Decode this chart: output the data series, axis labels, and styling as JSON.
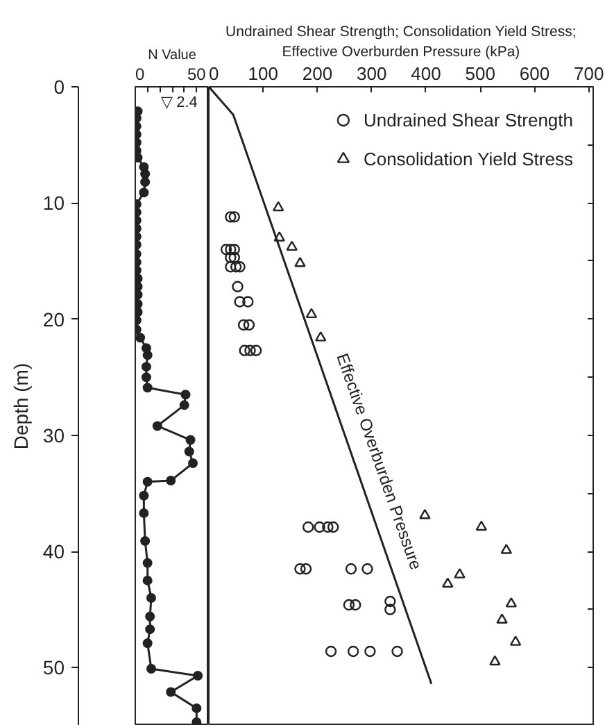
{
  "chart_data": [
    {
      "type": "line",
      "xlabel": "N Value",
      "ylabel": "Depth (m)",
      "xlim": [
        0,
        60
      ],
      "ylim": [
        55,
        0
      ],
      "xticks": [
        0,
        {
          "value": 10,
          "label": null
        },
        {
          "value": 20,
          "label": null
        },
        {
          "value": 30,
          "label": null
        },
        {
          "value": 40,
          "label": null
        },
        50
      ],
      "yticks": [
        0,
        10,
        20,
        30,
        40,
        50
      ],
      "marker": "circle",
      "grid": false,
      "annotations": [
        "▽ 2.4"
      ],
      "series": [
        {
          "color": "#222222",
          "x": [
            2,
            1,
            1,
            1,
            1,
            1,
            2,
            7,
            8,
            8,
            7,
            1,
            1,
            1,
            1,
            1,
            1,
            1,
            1,
            1,
            2,
            2,
            2,
            2,
            2,
            1,
            1,
            4,
            9,
            10,
            9,
            9,
            10,
            41,
            40,
            18,
            45,
            44,
            47,
            29,
            10,
            7,
            7,
            8,
            10,
            10,
            13,
            12,
            12,
            10,
            13,
            51,
            29,
            50,
            50
          ],
          "values": [
            2.1,
            2.7,
            3.4,
            4.1,
            4.8,
            5.5,
            6.1,
            6.9,
            7.5,
            8.2,
            9.1,
            10.1,
            10.8,
            11.5,
            12.2,
            12.9,
            13.6,
            14.4,
            15.1,
            15.8,
            16.5,
            17.2,
            17.9,
            18.7,
            19.4,
            20.1,
            20.9,
            21.6,
            22.5,
            23.1,
            24.1,
            25.0,
            25.9,
            26.5,
            27.4,
            29.2,
            30.4,
            31.4,
            32.4,
            33.9,
            34.0,
            35.2,
            36.7,
            39.1,
            41.0,
            42.5,
            44.0,
            45.6,
            46.7,
            47.9,
            50.1,
            50.7,
            52.1,
            53.5,
            54.7
          ]
        }
      ]
    },
    {
      "type": "scatter",
      "xlabel": "Undrained Shear Strength; Consolidation Yield Stress;\nEffective Overburden Pressure (kPa)",
      "xlim": [
        0,
        708
      ],
      "ylim": [
        55,
        0
      ],
      "xticks": [
        0,
        100,
        200,
        300,
        400,
        500,
        600,
        700
      ],
      "yticks": [
        {
          "value": 5,
          "label": null
        },
        {
          "value": 10,
          "label": null
        },
        {
          "value": 15,
          "label": null
        },
        {
          "value": 20,
          "label": null
        },
        {
          "value": 25,
          "label": null
        },
        {
          "value": 30,
          "label": null
        },
        {
          "value": 35,
          "label": null
        },
        {
          "value": 40,
          "label": null
        },
        {
          "value": 45,
          "label": null
        },
        {
          "value": 50,
          "label": null
        }
      ],
      "tick_labels": "x",
      "grid": false,
      "legend": "top right",
      "series": [
        {
          "name": "Undrained Shear Strength",
          "marker": "circle",
          "color": "#222222",
          "x": [
            40,
            47,
            32,
            40,
            47,
            40,
            47,
            40,
            50,
            57,
            53,
            57,
            72,
            64,
            74,
            66,
            76,
            87,
            183,
            204,
            219,
            229,
            168,
            179,
            262,
            292,
            258,
            270,
            334,
            334,
            225,
            266,
            297,
            347
          ],
          "values": [
            11.2,
            11.2,
            14.0,
            14.0,
            14.0,
            14.7,
            14.7,
            15.5,
            15.5,
            15.5,
            17.2,
            18.5,
            18.5,
            20.5,
            20.5,
            22.7,
            22.7,
            22.7,
            37.9,
            37.9,
            37.9,
            37.9,
            41.5,
            41.5,
            41.5,
            41.5,
            44.6,
            44.6,
            44.3,
            45.0,
            48.6,
            48.6,
            48.6,
            48.6
          ]
        },
        {
          "name": "Consolidation Yield Stress",
          "marker": "triangle",
          "color": "#222222",
          "x": [
            128,
            130,
            153,
            168,
            189,
            206,
            398,
            502,
            548,
            462,
            440,
            557,
            540,
            565,
            527
          ],
          "values": [
            10.4,
            13.0,
            13.8,
            15.2,
            19.6,
            21.6,
            36.9,
            37.9,
            39.9,
            42.0,
            42.8,
            44.5,
            45.9,
            47.8,
            49.5
          ]
        },
        {
          "name": "Effective Overburden Pressure",
          "type": "line",
          "marker": "none",
          "color": "#222222",
          "x": [
            0,
            45,
            410
          ],
          "values": [
            0,
            2.4,
            51.4
          ]
        }
      ]
    }
  ]
}
